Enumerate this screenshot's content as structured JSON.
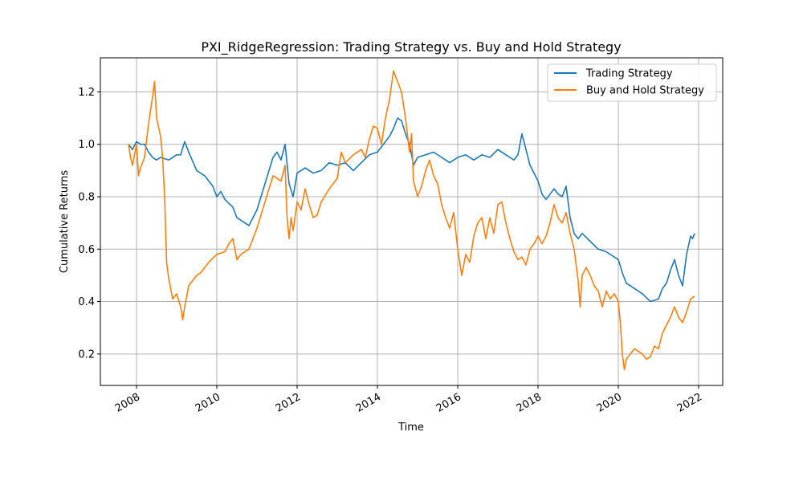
{
  "chart_data": {
    "type": "line",
    "title": "PXI_RidgeRegression: Trading Strategy vs. Buy and Hold Strategy",
    "xlabel": "Time",
    "ylabel": "Cumulative Returns",
    "x_ticks": [
      "2008",
      "2010",
      "2012",
      "2014",
      "2016",
      "2018",
      "2020",
      "2022"
    ],
    "y_ticks": [
      "0.2",
      "0.4",
      "0.6",
      "0.8",
      "1.0",
      "1.2"
    ],
    "xlim": [
      2007.1,
      2022.6
    ],
    "ylim": [
      0.08,
      1.33
    ],
    "grid": true,
    "legend_position": "top-right",
    "series": [
      {
        "name": "Trading Strategy",
        "color": "#1f77b4",
        "points": [
          [
            2007.8,
            1.0
          ],
          [
            2007.9,
            0.98
          ],
          [
            2008.0,
            1.01
          ],
          [
            2008.1,
            1.0
          ],
          [
            2008.2,
            1.0
          ],
          [
            2008.3,
            0.97
          ],
          [
            2008.4,
            0.95
          ],
          [
            2008.5,
            0.94
          ],
          [
            2008.6,
            0.95
          ],
          [
            2008.8,
            0.94
          ],
          [
            2009.0,
            0.96
          ],
          [
            2009.1,
            0.96
          ],
          [
            2009.2,
            1.01
          ],
          [
            2009.3,
            0.97
          ],
          [
            2009.5,
            0.9
          ],
          [
            2009.7,
            0.88
          ],
          [
            2009.9,
            0.84
          ],
          [
            2010.0,
            0.8
          ],
          [
            2010.1,
            0.82
          ],
          [
            2010.2,
            0.79
          ],
          [
            2010.4,
            0.76
          ],
          [
            2010.5,
            0.72
          ],
          [
            2010.7,
            0.7
          ],
          [
            2010.8,
            0.69
          ],
          [
            2011.0,
            0.75
          ],
          [
            2011.1,
            0.8
          ],
          [
            2011.3,
            0.9
          ],
          [
            2011.4,
            0.95
          ],
          [
            2011.5,
            0.97
          ],
          [
            2011.6,
            0.94
          ],
          [
            2011.7,
            1.0
          ],
          [
            2011.8,
            0.85
          ],
          [
            2011.9,
            0.8
          ],
          [
            2012.0,
            0.89
          ],
          [
            2012.2,
            0.91
          ],
          [
            2012.4,
            0.89
          ],
          [
            2012.6,
            0.9
          ],
          [
            2012.8,
            0.93
          ],
          [
            2013.0,
            0.92
          ],
          [
            2013.2,
            0.93
          ],
          [
            2013.4,
            0.9
          ],
          [
            2013.6,
            0.93
          ],
          [
            2013.8,
            0.96
          ],
          [
            2014.0,
            0.97
          ],
          [
            2014.2,
            1.01
          ],
          [
            2014.3,
            1.03
          ],
          [
            2014.4,
            1.06
          ],
          [
            2014.5,
            1.1
          ],
          [
            2014.6,
            1.09
          ],
          [
            2014.7,
            1.04
          ],
          [
            2014.8,
            1.0
          ],
          [
            2014.9,
            0.92
          ],
          [
            2015.0,
            0.95
          ],
          [
            2015.2,
            0.96
          ],
          [
            2015.4,
            0.97
          ],
          [
            2015.6,
            0.95
          ],
          [
            2015.8,
            0.93
          ],
          [
            2016.0,
            0.95
          ],
          [
            2016.2,
            0.96
          ],
          [
            2016.4,
            0.94
          ],
          [
            2016.6,
            0.96
          ],
          [
            2016.8,
            0.95
          ],
          [
            2017.0,
            0.98
          ],
          [
            2017.2,
            0.96
          ],
          [
            2017.4,
            0.94
          ],
          [
            2017.5,
            0.96
          ],
          [
            2017.6,
            1.04
          ],
          [
            2017.7,
            0.98
          ],
          [
            2017.8,
            0.92
          ],
          [
            2018.0,
            0.86
          ],
          [
            2018.1,
            0.81
          ],
          [
            2018.2,
            0.79
          ],
          [
            2018.4,
            0.83
          ],
          [
            2018.5,
            0.81
          ],
          [
            2018.6,
            0.8
          ],
          [
            2018.7,
            0.84
          ],
          [
            2018.8,
            0.72
          ],
          [
            2018.9,
            0.66
          ],
          [
            2019.0,
            0.64
          ],
          [
            2019.1,
            0.66
          ],
          [
            2019.3,
            0.63
          ],
          [
            2019.5,
            0.6
          ],
          [
            2019.7,
            0.59
          ],
          [
            2019.9,
            0.57
          ],
          [
            2020.0,
            0.56
          ],
          [
            2020.1,
            0.51
          ],
          [
            2020.2,
            0.47
          ],
          [
            2020.4,
            0.45
          ],
          [
            2020.6,
            0.43
          ],
          [
            2020.8,
            0.4
          ],
          [
            2021.0,
            0.41
          ],
          [
            2021.1,
            0.45
          ],
          [
            2021.2,
            0.47
          ],
          [
            2021.3,
            0.52
          ],
          [
            2021.4,
            0.56
          ],
          [
            2021.5,
            0.5
          ],
          [
            2021.6,
            0.46
          ],
          [
            2021.7,
            0.58
          ],
          [
            2021.8,
            0.65
          ],
          [
            2021.85,
            0.64
          ],
          [
            2021.9,
            0.66
          ]
        ]
      },
      {
        "name": "Buy and Hold Strategy",
        "color": "#ff7f0e",
        "points": [
          [
            2007.8,
            1.0
          ],
          [
            2007.85,
            0.95
          ],
          [
            2007.9,
            0.92
          ],
          [
            2008.0,
            1.0
          ],
          [
            2008.05,
            0.88
          ],
          [
            2008.1,
            0.91
          ],
          [
            2008.2,
            0.95
          ],
          [
            2008.3,
            1.08
          ],
          [
            2008.4,
            1.18
          ],
          [
            2008.45,
            1.24
          ],
          [
            2008.5,
            1.1
          ],
          [
            2008.6,
            1.03
          ],
          [
            2008.65,
            0.95
          ],
          [
            2008.7,
            0.8
          ],
          [
            2008.75,
            0.55
          ],
          [
            2008.8,
            0.49
          ],
          [
            2008.9,
            0.41
          ],
          [
            2009.0,
            0.43
          ],
          [
            2009.1,
            0.38
          ],
          [
            2009.15,
            0.33
          ],
          [
            2009.2,
            0.38
          ],
          [
            2009.3,
            0.46
          ],
          [
            2009.4,
            0.48
          ],
          [
            2009.5,
            0.5
          ],
          [
            2009.6,
            0.51
          ],
          [
            2009.8,
            0.55
          ],
          [
            2010.0,
            0.58
          ],
          [
            2010.2,
            0.59
          ],
          [
            2010.3,
            0.62
          ],
          [
            2010.4,
            0.64
          ],
          [
            2010.5,
            0.56
          ],
          [
            2010.6,
            0.58
          ],
          [
            2010.8,
            0.6
          ],
          [
            2011.0,
            0.68
          ],
          [
            2011.2,
            0.78
          ],
          [
            2011.4,
            0.88
          ],
          [
            2011.6,
            0.86
          ],
          [
            2011.7,
            0.92
          ],
          [
            2011.75,
            0.72
          ],
          [
            2011.8,
            0.64
          ],
          [
            2011.85,
            0.72
          ],
          [
            2011.9,
            0.67
          ],
          [
            2012.0,
            0.78
          ],
          [
            2012.1,
            0.75
          ],
          [
            2012.2,
            0.83
          ],
          [
            2012.3,
            0.77
          ],
          [
            2012.4,
            0.72
          ],
          [
            2012.5,
            0.73
          ],
          [
            2012.6,
            0.78
          ],
          [
            2012.8,
            0.83
          ],
          [
            2013.0,
            0.87
          ],
          [
            2013.1,
            0.97
          ],
          [
            2013.2,
            0.93
          ],
          [
            2013.4,
            0.96
          ],
          [
            2013.6,
            0.98
          ],
          [
            2013.7,
            0.95
          ],
          [
            2013.8,
            1.02
          ],
          [
            2013.9,
            1.07
          ],
          [
            2014.0,
            1.06
          ],
          [
            2014.1,
            1.0
          ],
          [
            2014.2,
            1.1
          ],
          [
            2014.3,
            1.17
          ],
          [
            2014.4,
            1.28
          ],
          [
            2014.5,
            1.24
          ],
          [
            2014.6,
            1.2
          ],
          [
            2014.7,
            1.1
          ],
          [
            2014.8,
            0.97
          ],
          [
            2014.85,
            1.04
          ],
          [
            2014.9,
            0.86
          ],
          [
            2015.0,
            0.8
          ],
          [
            2015.1,
            0.84
          ],
          [
            2015.2,
            0.9
          ],
          [
            2015.3,
            0.94
          ],
          [
            2015.4,
            0.88
          ],
          [
            2015.5,
            0.85
          ],
          [
            2015.6,
            0.77
          ],
          [
            2015.7,
            0.72
          ],
          [
            2015.8,
            0.68
          ],
          [
            2015.9,
            0.74
          ],
          [
            2016.0,
            0.6
          ],
          [
            2016.1,
            0.5
          ],
          [
            2016.2,
            0.58
          ],
          [
            2016.3,
            0.55
          ],
          [
            2016.4,
            0.65
          ],
          [
            2016.5,
            0.7
          ],
          [
            2016.6,
            0.72
          ],
          [
            2016.7,
            0.64
          ],
          [
            2016.8,
            0.72
          ],
          [
            2016.9,
            0.66
          ],
          [
            2017.0,
            0.77
          ],
          [
            2017.1,
            0.78
          ],
          [
            2017.2,
            0.7
          ],
          [
            2017.3,
            0.64
          ],
          [
            2017.4,
            0.59
          ],
          [
            2017.5,
            0.56
          ],
          [
            2017.6,
            0.57
          ],
          [
            2017.7,
            0.54
          ],
          [
            2017.8,
            0.6
          ],
          [
            2017.9,
            0.62
          ],
          [
            2018.0,
            0.65
          ],
          [
            2018.1,
            0.62
          ],
          [
            2018.2,
            0.65
          ],
          [
            2018.3,
            0.7
          ],
          [
            2018.4,
            0.77
          ],
          [
            2018.5,
            0.72
          ],
          [
            2018.6,
            0.7
          ],
          [
            2018.7,
            0.74
          ],
          [
            2018.8,
            0.66
          ],
          [
            2018.9,
            0.6
          ],
          [
            2019.0,
            0.48
          ],
          [
            2019.05,
            0.38
          ],
          [
            2019.1,
            0.5
          ],
          [
            2019.2,
            0.53
          ],
          [
            2019.3,
            0.5
          ],
          [
            2019.4,
            0.46
          ],
          [
            2019.5,
            0.44
          ],
          [
            2019.6,
            0.38
          ],
          [
            2019.7,
            0.44
          ],
          [
            2019.8,
            0.41
          ],
          [
            2019.9,
            0.43
          ],
          [
            2020.0,
            0.4
          ],
          [
            2020.05,
            0.32
          ],
          [
            2020.1,
            0.2
          ],
          [
            2020.15,
            0.14
          ],
          [
            2020.2,
            0.18
          ],
          [
            2020.3,
            0.2
          ],
          [
            2020.4,
            0.22
          ],
          [
            2020.5,
            0.21
          ],
          [
            2020.6,
            0.2
          ],
          [
            2020.7,
            0.18
          ],
          [
            2020.8,
            0.19
          ],
          [
            2020.9,
            0.23
          ],
          [
            2021.0,
            0.22
          ],
          [
            2021.1,
            0.28
          ],
          [
            2021.2,
            0.31
          ],
          [
            2021.3,
            0.34
          ],
          [
            2021.4,
            0.38
          ],
          [
            2021.5,
            0.34
          ],
          [
            2021.6,
            0.32
          ],
          [
            2021.7,
            0.36
          ],
          [
            2021.8,
            0.41
          ],
          [
            2021.9,
            0.42
          ]
        ]
      }
    ]
  }
}
